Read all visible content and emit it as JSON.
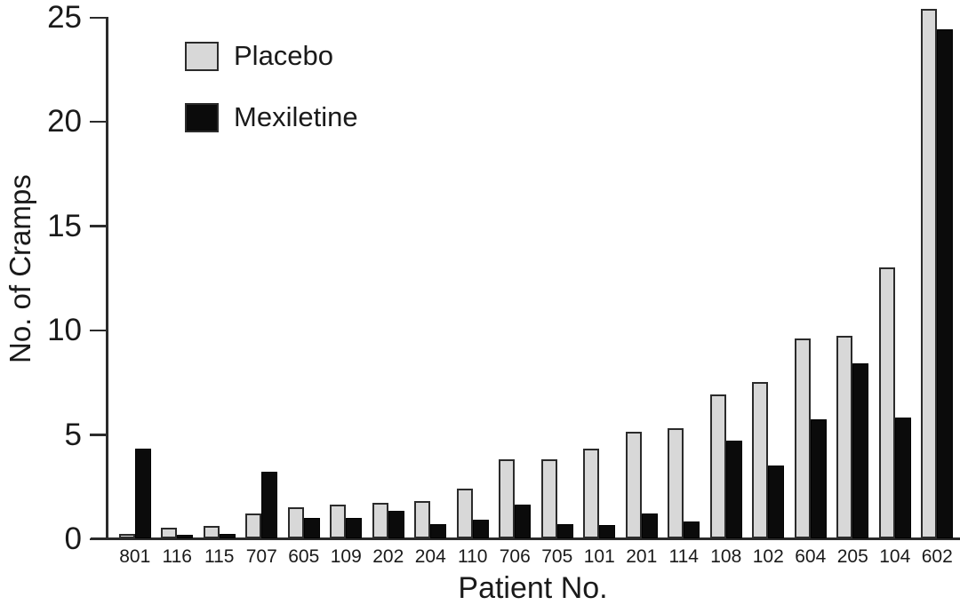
{
  "chart_data": {
    "type": "bar",
    "title": "",
    "xlabel": "Patient No.",
    "ylabel": "No. of Cramps",
    "ylim": [
      0,
      25
    ],
    "yticks": [
      0,
      5,
      10,
      15,
      20,
      25
    ],
    "grid": false,
    "legend_position": "top-left",
    "categories": [
      "801",
      "116",
      "115",
      "707",
      "605",
      "109",
      "202",
      "204",
      "110",
      "706",
      "705",
      "101",
      "201",
      "114",
      "108",
      "102",
      "604",
      "205",
      "104",
      "602"
    ],
    "series": [
      {
        "name": "Placebo",
        "color": "#d8d8d8",
        "values": [
          0.2,
          0.5,
          0.6,
          1.2,
          1.5,
          1.6,
          1.7,
          1.8,
          2.4,
          3.8,
          3.8,
          4.3,
          5.1,
          5.3,
          6.9,
          7.5,
          9.6,
          9.7,
          13.0,
          25.4
        ]
      },
      {
        "name": "Mexiletine",
        "color": "#0b0b0b",
        "values": [
          4.3,
          0.15,
          0.2,
          3.2,
          1.0,
          1.0,
          1.3,
          0.7,
          0.9,
          1.6,
          0.7,
          0.65,
          1.2,
          0.8,
          4.7,
          3.5,
          5.7,
          8.4,
          5.8,
          24.4
        ]
      }
    ],
    "colors": {
      "axis": "#2b2b2b",
      "text": "#1a1a1a",
      "background": "#ffffff"
    }
  }
}
